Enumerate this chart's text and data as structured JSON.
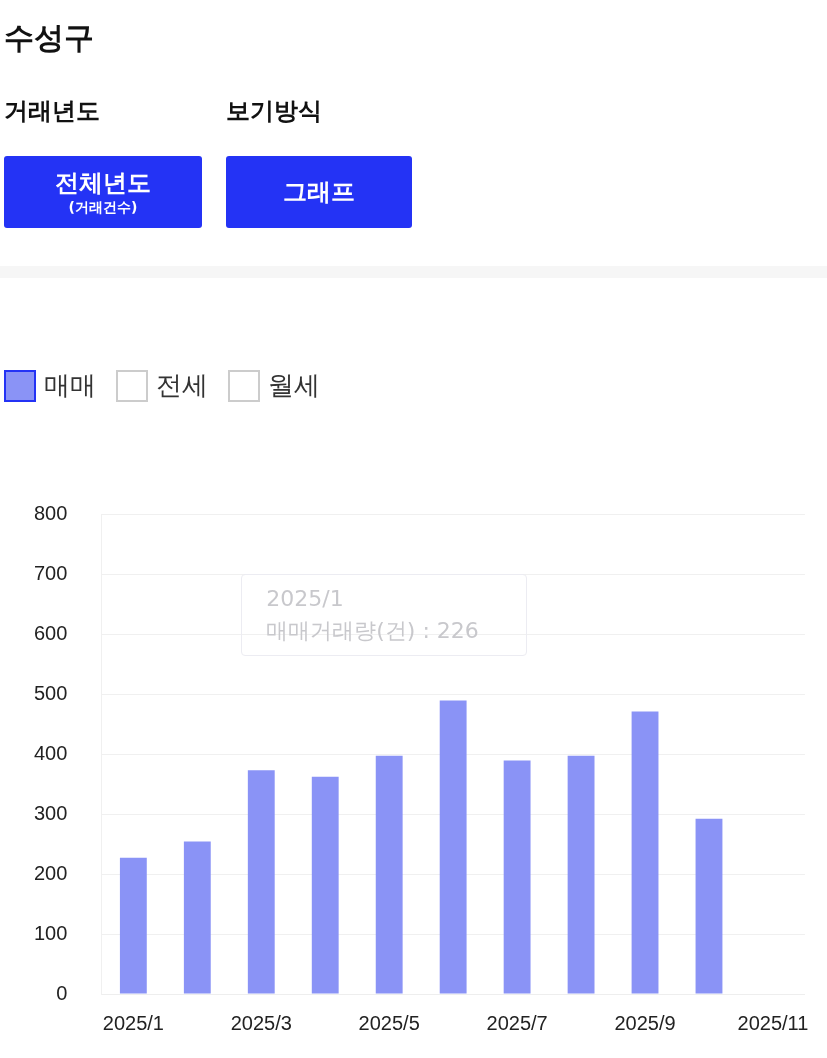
{
  "chart_data": {
    "type": "bar",
    "title": "수성구",
    "annotations": [
      "거래년도",
      "보기방식",
      "전체년도\n(거래건수)",
      "그래프",
      "2025/1\n매매거래량(건) : 226"
    ],
    "categories": [
      "2025/1",
      null,
      "2025/3",
      null,
      "2025/5",
      null,
      "2025/7",
      null,
      "2025/9",
      null,
      "2025/11"
    ],
    "series": [
      {
        "name": "매매",
        "color": "#8a93f6",
        "values": [
          227,
          254,
          373,
          362,
          397,
          489,
          389,
          397,
          471,
          292,
          null
        ]
      },
      {
        "name": "전세",
        "color": "#ffffff",
        "values": [
          null,
          null,
          null,
          null,
          null,
          null,
          null,
          null,
          null,
          null,
          null
        ]
      },
      {
        "name": "월세",
        "color": "#ffffff",
        "values": [
          null,
          null,
          null,
          null,
          null,
          null,
          null,
          null,
          null,
          null,
          null
        ]
      }
    ],
    "ylim": [
      0,
      800
    ],
    "yticks": [
      0,
      100,
      200,
      300,
      400,
      500,
      600,
      700,
      800
    ],
    "grid": "y",
    "legend": "top left"
  }
}
